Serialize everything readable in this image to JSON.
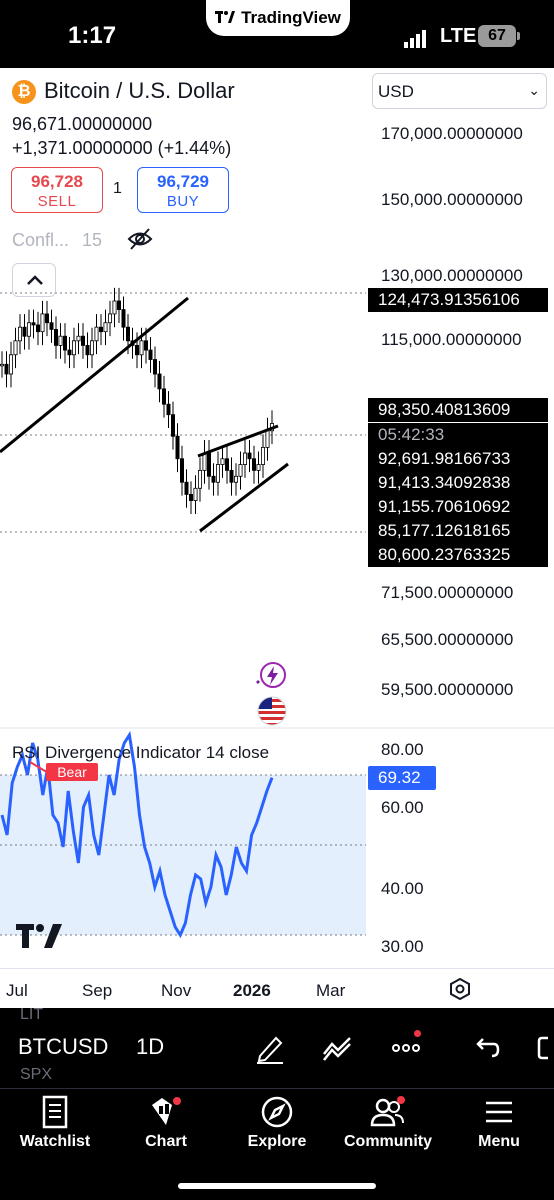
{
  "status_bar": {
    "time": "1:17",
    "app_pill": "TradingView",
    "network": "LTE",
    "battery": "67"
  },
  "symbol": {
    "title": "Bitcoin / U.S. Dollar",
    "price": "96,671.00000000",
    "change": "+1,371.00000000 (+1.44%)",
    "currency": "USD"
  },
  "trade": {
    "sell_price": "96,728",
    "sell_label": "SELL",
    "spread": "1",
    "buy_price": "96,729",
    "buy_label": "BUY"
  },
  "indicator_row": {
    "name": "Confl...",
    "value": "15"
  },
  "price_axis": {
    "labels": [
      "170,000.00000000",
      "150,000.00000000",
      "130,000.00000000",
      "115,000.00000000",
      "71,500.00000000",
      "65,500.00000000",
      "59,500.00000000"
    ],
    "tags": {
      "high": "124,473.91356106",
      "current": "98,350.40813609",
      "countdown": "05:42:33",
      "t1": "92,691.98166733",
      "t2": "91,413.34092838",
      "t3": "91,155.70610692",
      "t4": "85,177.12618165",
      "t5": "80,600.23763325"
    }
  },
  "rsi": {
    "title": "RSI Divergence Indicator 14 close",
    "bear_label": "Bear",
    "axis": [
      "80.00",
      "60.00",
      "40.00",
      "30.00"
    ],
    "current": "69.32"
  },
  "time_axis": [
    "Jul",
    "Sep",
    "Nov",
    "2026",
    "Mar"
  ],
  "toolbar": {
    "symbol": "BTCUSD",
    "interval": "1D",
    "ghost_top": "LIT",
    "ghost_bottom": "SPX"
  },
  "nav": {
    "watchlist": "Watchlist",
    "chart": "Chart",
    "explore": "Explore",
    "community": "Community",
    "menu": "Menu"
  },
  "colors": {
    "up": "#000000",
    "sell": "#e5484d",
    "buy": "#2962ff",
    "rsi_line": "#2962ff",
    "rsi_band": "#e3effc",
    "btc": "#f7931a"
  },
  "chart_data": {
    "type": "candlestick",
    "interval": "1D",
    "x_labels": [
      "Jul",
      "Sep",
      "Nov",
      "2026",
      "Mar"
    ],
    "price_range": [
      59500,
      170000
    ],
    "price_path": [
      110000,
      108000,
      112000,
      115000,
      118000,
      116000,
      119000,
      118500,
      117000,
      121000,
      119000,
      117500,
      114000,
      116000,
      113000,
      112000,
      115000,
      116000,
      114000,
      112000,
      115000,
      118000,
      117000,
      119000,
      121000,
      124000,
      122000,
      118000,
      115000,
      114000,
      112000,
      115000,
      113000,
      111000,
      108000,
      105000,
      102000,
      100000,
      96000,
      92000,
      88000,
      86000,
      85000,
      87000,
      90000,
      93000,
      89000,
      88000,
      91000,
      92000,
      90000,
      88000,
      89000,
      91000,
      93000,
      92000,
      90000,
      91000,
      94000,
      97000,
      98350
    ],
    "rsi_path": [
      60,
      55,
      68,
      72,
      75,
      70,
      78,
      74,
      65,
      72,
      60,
      58,
      52,
      66,
      56,
      48,
      62,
      65,
      55,
      50,
      60,
      70,
      65,
      74,
      78,
      80,
      72,
      60,
      52,
      48,
      42,
      46,
      40,
      36,
      32,
      30,
      33,
      40,
      45,
      44,
      38,
      42,
      50,
      47,
      40,
      45,
      52,
      48,
      46,
      55,
      58,
      62,
      66,
      69.32
    ],
    "rsi_range": [
      25,
      85
    ],
    "rsi_bands": [
      70,
      30
    ]
  }
}
